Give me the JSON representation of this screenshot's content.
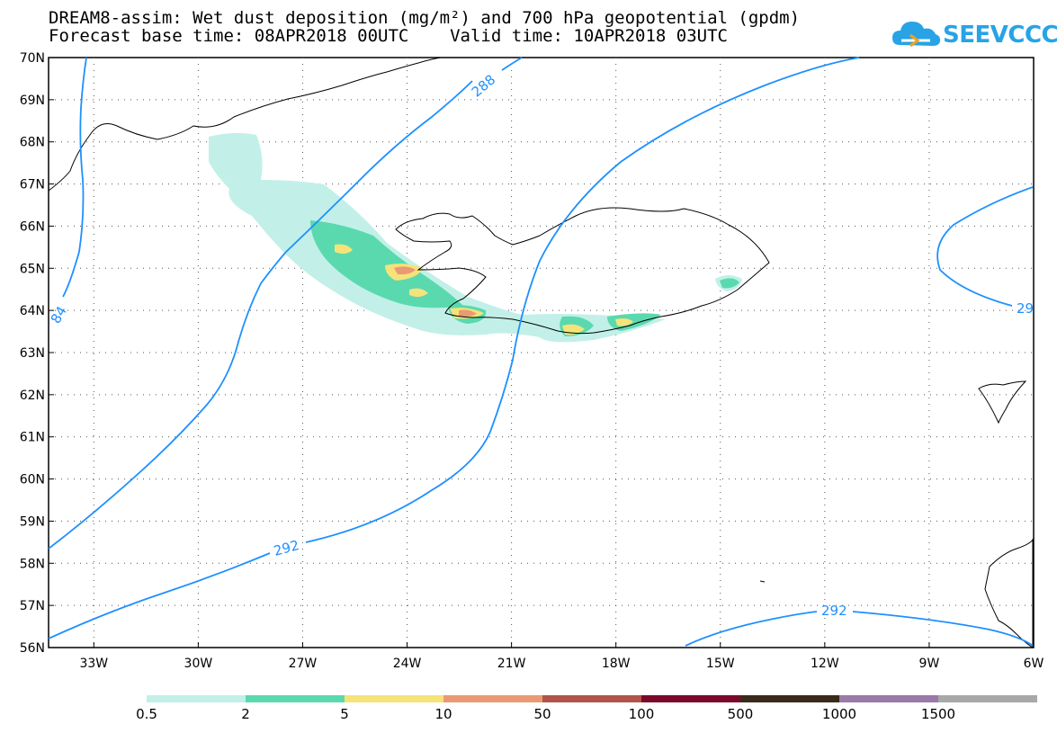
{
  "title": {
    "line1": "DREAM8-assim: Wet dust deposition (mg/m²) and 700 hPa geopotential (gpdm)",
    "line2": "Forecast base time: 08APR2018 00UTC    Valid time: 10APR2018 03UTC"
  },
  "logo": {
    "text": "SEEVCCC",
    "icon": "cloud-logo-icon",
    "color": "#27a3e6"
  },
  "map": {
    "lat_labels": [
      "70N",
      "69N",
      "68N",
      "67N",
      "66N",
      "65N",
      "64N",
      "63N",
      "62N",
      "61N",
      "60N",
      "59N",
      "58N",
      "57N",
      "56N"
    ],
    "lon_labels": [
      "33W",
      "30W",
      "27W",
      "24W",
      "21W",
      "18W",
      "15W",
      "12W",
      "9W",
      "6W"
    ],
    "lat_range": [
      56,
      70
    ],
    "lon_range": [
      -34.3,
      -6
    ],
    "contour_color": "#1e90ff",
    "contour_labels": [
      "288",
      "292",
      "292",
      "84",
      "29"
    ]
  },
  "legend": {
    "thresholds": [
      "0.5",
      "2",
      "5",
      "10",
      "50",
      "100",
      "500",
      "1000",
      "1500"
    ],
    "colors": [
      "#c2f0e8",
      "#5ad9ae",
      "#f5e37a",
      "#ea9a73",
      "#b0544a",
      "#7b0a2a",
      "#3a2a1a",
      "#9b79a8",
      "#a8a8a8"
    ]
  }
}
